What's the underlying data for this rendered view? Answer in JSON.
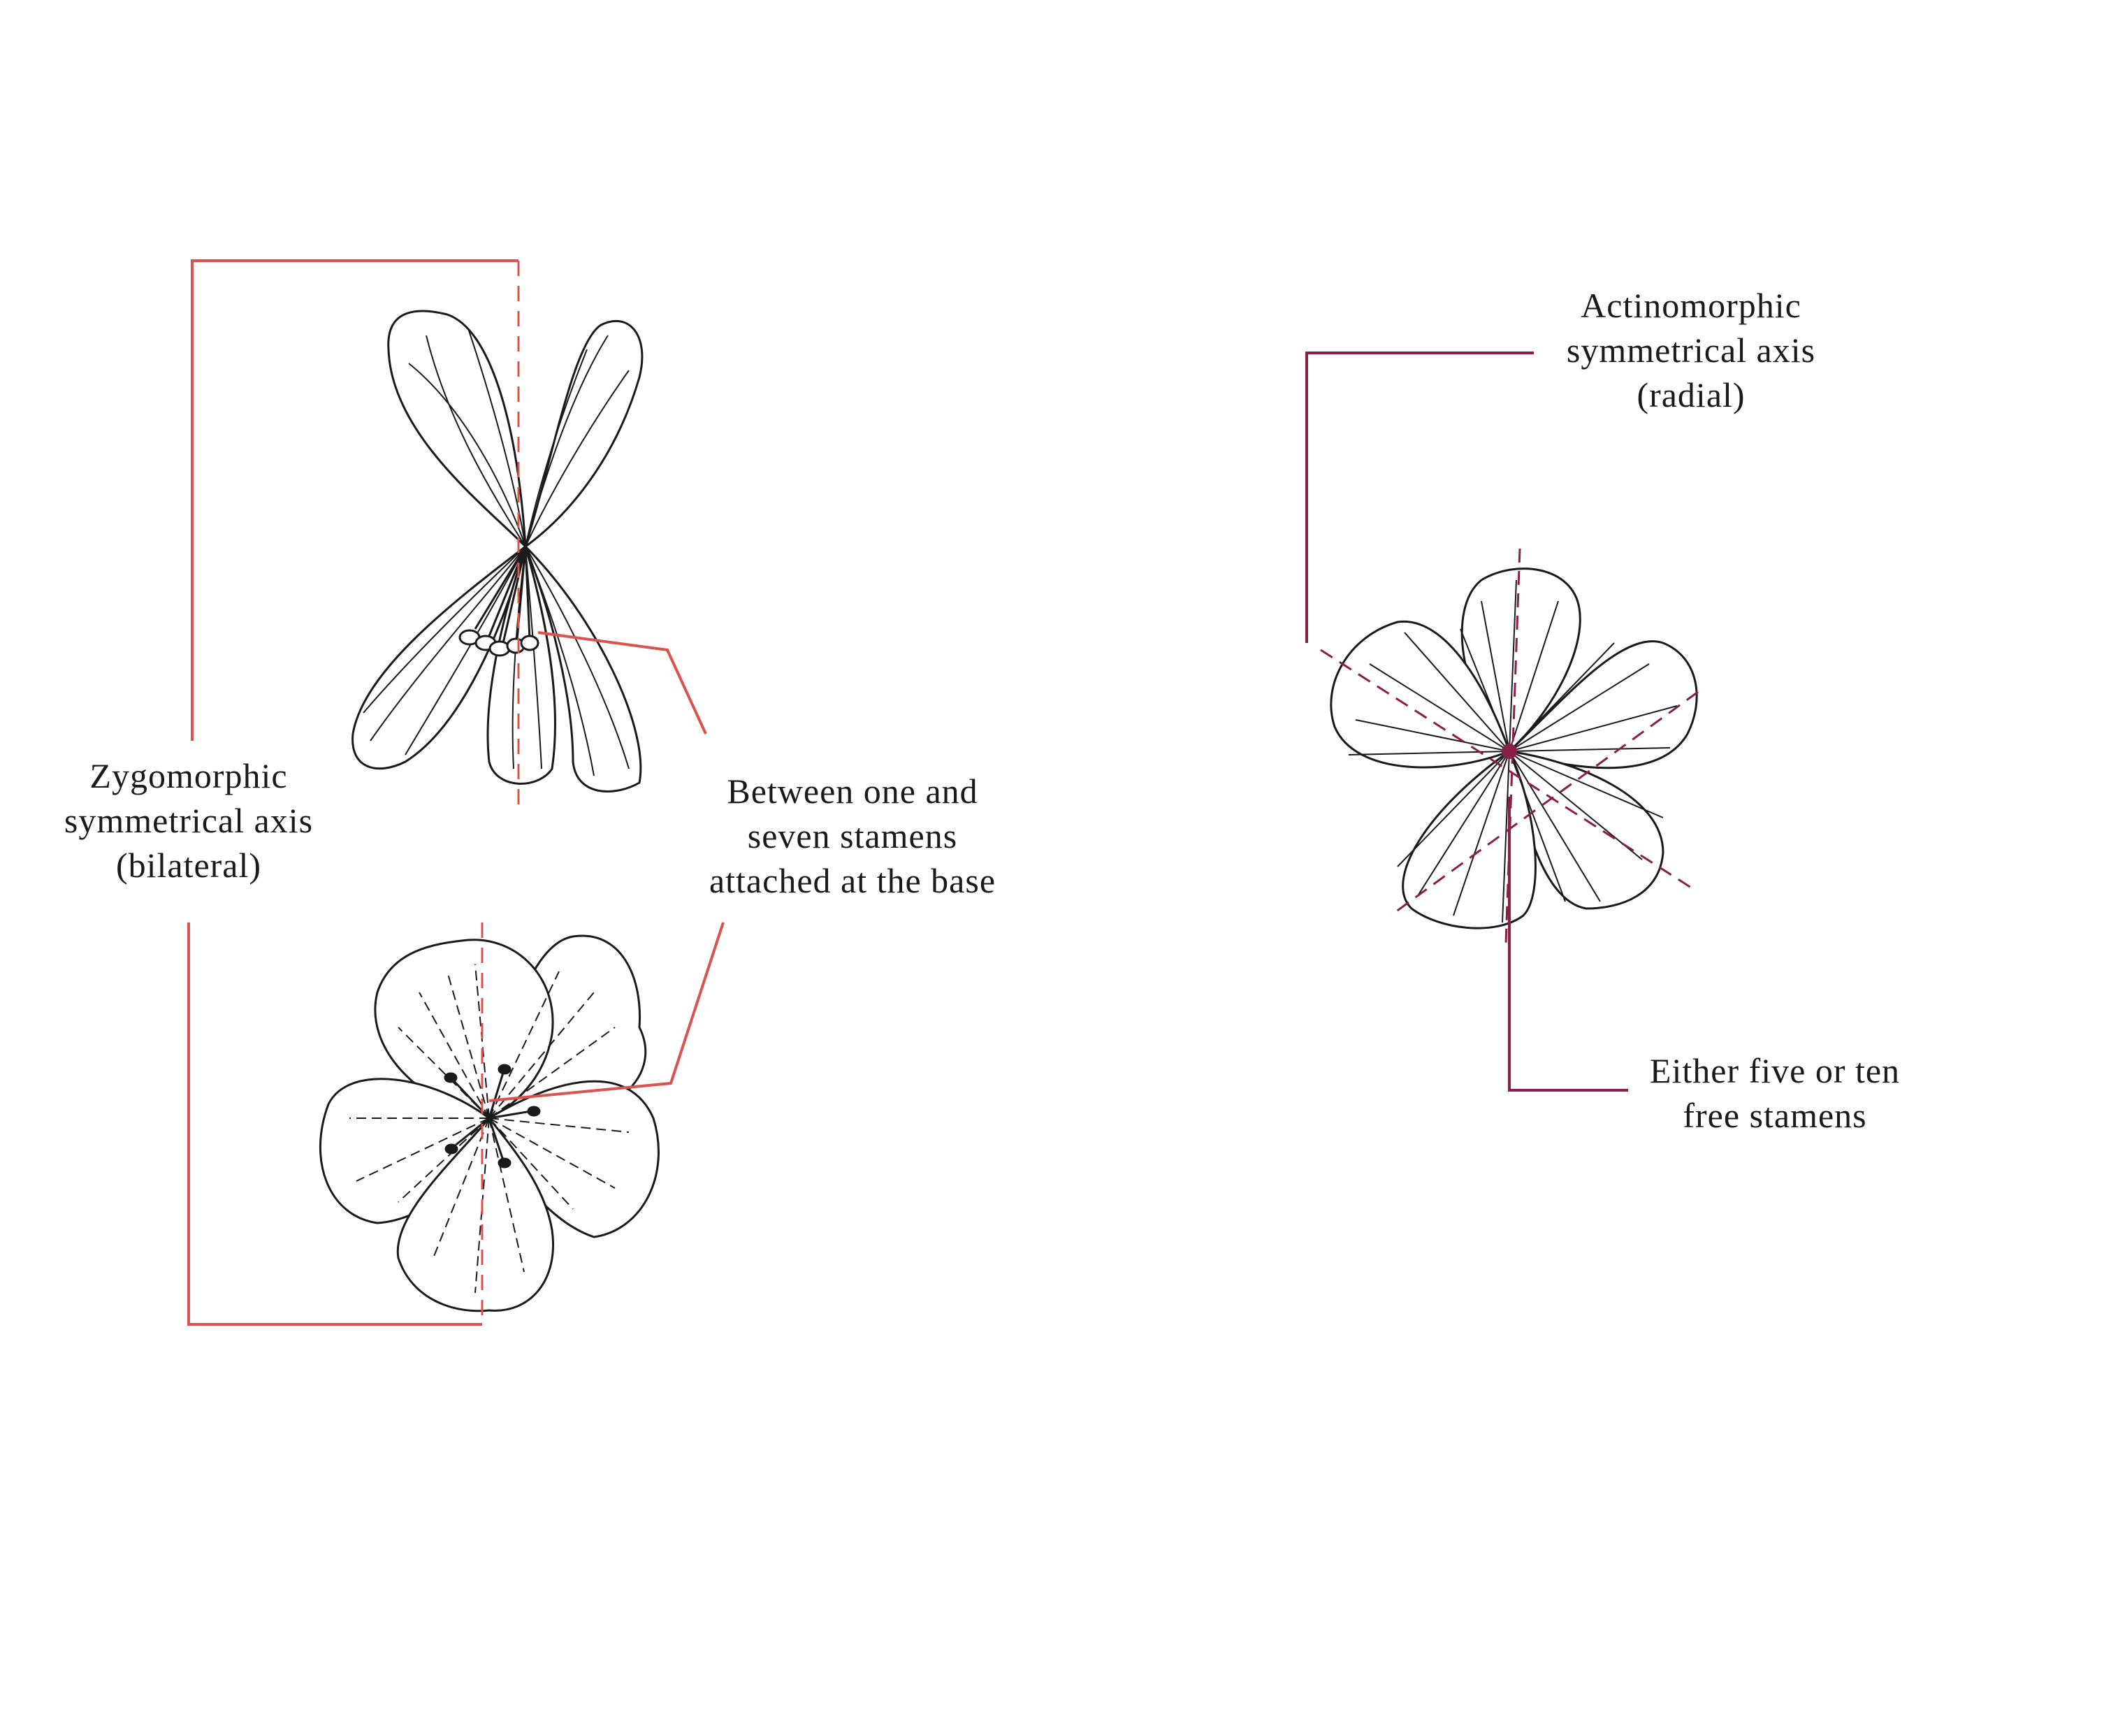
{
  "colors": {
    "bilateral_line": "#d9544f",
    "radial_line": "#8a1f4a",
    "ink": "#1a1a1a",
    "background": "#ffffff"
  },
  "labels": {
    "zygomorphic": {
      "line1": "Zygomorphic",
      "line2": "symmetrical axis",
      "line3": "(bilateral)"
    },
    "stamens_left": {
      "line1": "Between one and",
      "line2": "seven stamens",
      "line3": "attached at the base"
    },
    "actinomorphic": {
      "line1": "Actinomorphic",
      "line2": "symmetrical axis",
      "line3": "(radial)"
    },
    "stamens_right": {
      "line1": "Either five or ten",
      "line2": "free stamens"
    }
  },
  "figures": {
    "left_top": "zygomorphic flower, side view",
    "left_bottom": "zygomorphic flower, front view",
    "right": "actinomorphic flower, front view"
  }
}
